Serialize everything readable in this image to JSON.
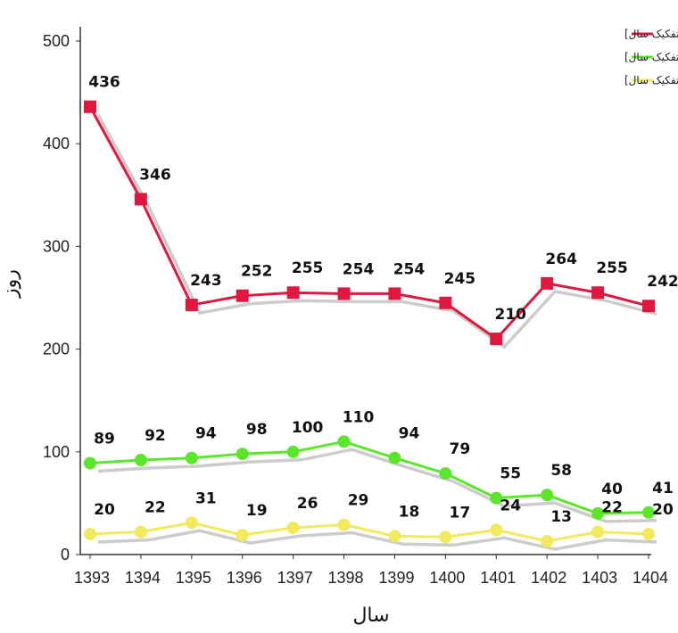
{
  "chart_data": {
    "type": "line",
    "title": "",
    "xlabel": "سال",
    "ylabel": "روز",
    "ylim": [
      0,
      520
    ],
    "yticks": [
      0,
      100,
      200,
      300,
      400,
      500
    ],
    "categories": [
      "1393",
      "1394",
      "1395",
      "1396",
      "1397",
      "1398",
      "1399",
      "1400",
      "1401",
      "1402",
      "1403",
      "1404"
    ],
    "legend_position": "top-right",
    "grid": false,
    "series": [
      {
        "name": "میانگین زمان پذیرش نهایی تا انتشار [به تفکیک سال]",
        "color": "#e0173f",
        "marker": "square",
        "values": [
          436,
          346,
          243,
          252,
          255,
          254,
          254,
          245,
          210,
          264,
          255,
          242
        ]
      },
      {
        "name": "میانگین زمان دریافت تا پذیرش نهایی [به تفکیک سال]",
        "color": "#5be62a",
        "marker": "circle",
        "values": [
          89,
          92,
          94,
          98,
          100,
          110,
          94,
          79,
          55,
          58,
          40,
          41
        ]
      },
      {
        "name": "میانگین زمان داوری [به تفکیک سال]",
        "color": "#f2ea5c",
        "marker": "circle",
        "values": [
          20,
          22,
          31,
          19,
          26,
          29,
          18,
          17,
          24,
          13,
          22,
          20
        ]
      }
    ]
  }
}
